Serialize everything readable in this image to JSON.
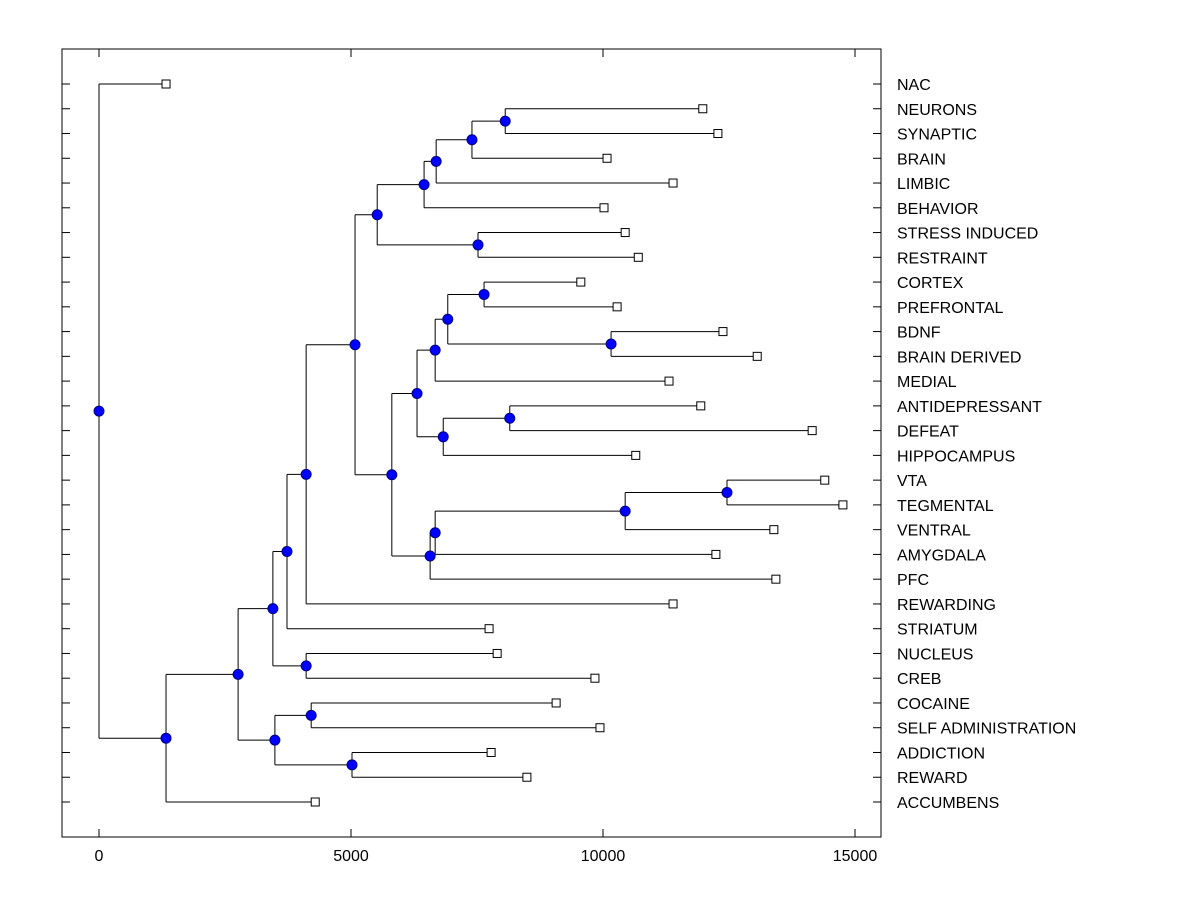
{
  "chart_data": {
    "type": "dendrogram",
    "title": "",
    "xlabel": "",
    "ylabel": "",
    "xlim": [
      -700,
      15500
    ],
    "xticks": [
      0,
      5000,
      10000,
      15000
    ],
    "xtick_labels": [
      "0",
      "5000",
      "10000",
      "15000"
    ],
    "grid": false,
    "legend": "none",
    "colors": {
      "node_fill": "#0000ff",
      "node_stroke": "#000080",
      "line": "#000000",
      "leaf_fill": "#ffffff"
    },
    "leaves": [
      {
        "label": "NAC",
        "value": 1330
      },
      {
        "label": "NEURONS",
        "value": 11980
      },
      {
        "label": "SYNAPTIC",
        "value": 12280
      },
      {
        "label": "BRAIN",
        "value": 10080
      },
      {
        "label": "LIMBIC",
        "value": 11390
      },
      {
        "label": "BEHAVIOR",
        "value": 10020
      },
      {
        "label": "STRESS INDUCED",
        "value": 10440
      },
      {
        "label": "RESTRAINT",
        "value": 10700
      },
      {
        "label": "CORTEX",
        "value": 9560
      },
      {
        "label": "PREFRONTAL",
        "value": 10280
      },
      {
        "label": "BDNF",
        "value": 12380
      },
      {
        "label": "BRAIN DERIVED",
        "value": 13060
      },
      {
        "label": "MEDIAL",
        "value": 11310
      },
      {
        "label": "ANTIDEPRESSANT",
        "value": 11940
      },
      {
        "label": "DEFEAT",
        "value": 14150
      },
      {
        "label": "HIPPOCAMPUS",
        "value": 10650
      },
      {
        "label": "VTA",
        "value": 14400
      },
      {
        "label": "TEGMENTAL",
        "value": 14760
      },
      {
        "label": "VENTRAL",
        "value": 13390
      },
      {
        "label": "AMYGDALA",
        "value": 12240
      },
      {
        "label": "PFC",
        "value": 13430
      },
      {
        "label": "REWARDING",
        "value": 11390
      },
      {
        "label": "STRIATUM",
        "value": 7740
      },
      {
        "label": "NUCLEUS",
        "value": 7900
      },
      {
        "label": "CREB",
        "value": 9840
      },
      {
        "label": "COCAINE",
        "value": 9070
      },
      {
        "label": "SELF ADMINISTRATION",
        "value": 9940
      },
      {
        "label": "ADDICTION",
        "value": 7780
      },
      {
        "label": "REWARD",
        "value": 8490
      },
      {
        "label": "ACCUMBENS",
        "value": 4290
      }
    ],
    "tree": {
      "value": 0,
      "children": [
        {
          "leaf": 0
        },
        {
          "value": 1330,
          "children": [
            {
              "value": 2760,
              "children": [
                {
                  "value": 3450,
                  "children": [
                    {
                      "value": 3730,
                      "children": [
                        {
                          "value": 4110,
                          "children": [
                            {
                              "value": 5080,
                              "children": [
                                {
                                  "value": 5520,
                                  "children": [
                                    {
                                      "value": 6450,
                                      "children": [
                                        {
                                          "value": 6690,
                                          "children": [
                                            {
                                              "value": 7400,
                                              "children": [
                                                {
                                                  "value": 8060,
                                                  "children": [
                                                    {
                                                      "leaf": 1
                                                    },
                                                    {
                                                      "leaf": 2
                                                    }
                                                  ]
                                                },
                                                {
                                                  "leaf": 3
                                                }
                                              ]
                                            },
                                            {
                                              "leaf": 4
                                            }
                                          ]
                                        },
                                        {
                                          "leaf": 5
                                        }
                                      ]
                                    },
                                    {
                                      "value": 7520,
                                      "children": [
                                        {
                                          "leaf": 6
                                        },
                                        {
                                          "leaf": 7
                                        }
                                      ]
                                    }
                                  ]
                                },
                                {
                                  "value": 5810,
                                  "children": [
                                    {
                                      "value": 6310,
                                      "children": [
                                        {
                                          "value": 6670,
                                          "children": [
                                            {
                                              "value": 6920,
                                              "children": [
                                                {
                                                  "value": 7640,
                                                  "children": [
                                                    {
                                                      "leaf": 8
                                                    },
                                                    {
                                                      "leaf": 9
                                                    }
                                                  ]
                                                },
                                                {
                                                  "value": 10160,
                                                  "children": [
                                                    {
                                                      "leaf": 10
                                                    },
                                                    {
                                                      "leaf": 11
                                                    }
                                                  ]
                                                }
                                              ]
                                            },
                                            {
                                              "leaf": 12
                                            }
                                          ]
                                        },
                                        {
                                          "value": 6830,
                                          "children": [
                                            {
                                              "value": 8150,
                                              "children": [
                                                {
                                                  "leaf": 13
                                                },
                                                {
                                                  "leaf": 14
                                                }
                                              ]
                                            },
                                            {
                                              "leaf": 15
                                            }
                                          ]
                                        }
                                      ]
                                    },
                                    {
                                      "value": 6570,
                                      "children": [
                                        {
                                          "value": 6670,
                                          "children": [
                                            {
                                              "value": 10440,
                                              "children": [
                                                {
                                                  "value": 12460,
                                                  "children": [
                                                    {
                                                      "leaf": 16
                                                    },
                                                    {
                                                      "leaf": 17
                                                    }
                                                  ]
                                                },
                                                {
                                                  "leaf": 18
                                                }
                                              ]
                                            },
                                            {
                                              "leaf": 19
                                            }
                                          ]
                                        },
                                        {
                                          "leaf": 20
                                        }
                                      ]
                                    }
                                  ]
                                }
                              ]
                            },
                            {
                              "leaf": 21
                            }
                          ]
                        },
                        {
                          "leaf": 22
                        }
                      ]
                    },
                    {
                      "value": 4110,
                      "children": [
                        {
                          "leaf": 23
                        },
                        {
                          "leaf": 24
                        }
                      ]
                    }
                  ]
                },
                {
                  "value": 3490,
                  "children": [
                    {
                      "value": 4210,
                      "children": [
                        {
                          "leaf": 25
                        },
                        {
                          "leaf": 26
                        }
                      ]
                    },
                    {
                      "value": 5020,
                      "children": [
                        {
                          "leaf": 27
                        },
                        {
                          "leaf": 28
                        }
                      ]
                    }
                  ]
                }
              ]
            },
            {
              "leaf": 29
            }
          ]
        }
      ]
    }
  }
}
